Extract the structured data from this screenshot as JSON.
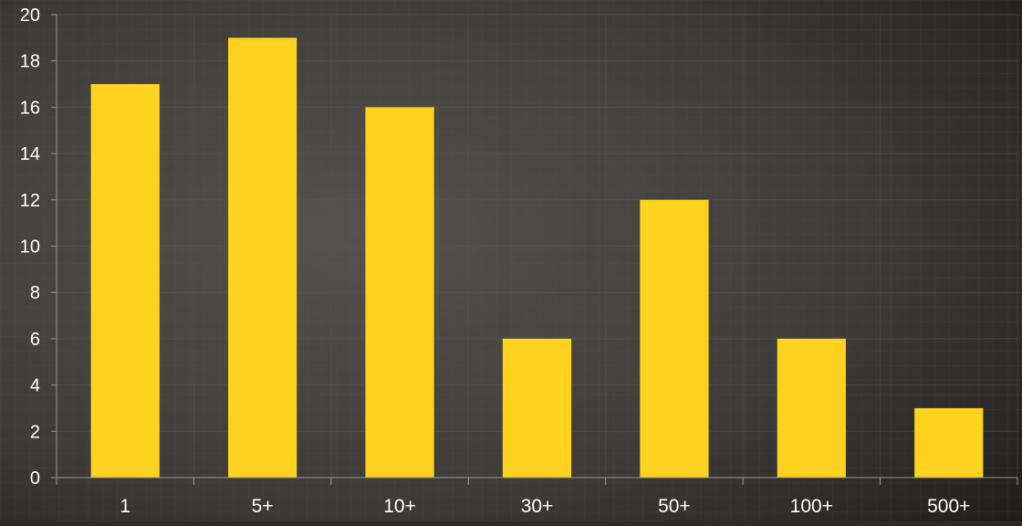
{
  "chart_data": {
    "type": "bar",
    "categories": [
      "1",
      "5+",
      "10+",
      "30+",
      "50+",
      "100+",
      "500+"
    ],
    "values": [
      17,
      19,
      16,
      6,
      12,
      6,
      3
    ],
    "title": "",
    "xlabel": "",
    "ylabel": "",
    "ylim": [
      0,
      20
    ],
    "yticks": [
      0,
      2,
      4,
      6,
      8,
      10,
      12,
      14,
      16,
      18,
      20
    ],
    "grid": true,
    "legend": "none"
  },
  "colors": {
    "bar": "#ffd21f",
    "background": "#2c2b28",
    "grid": "#5a5851",
    "axis": "#9a978e",
    "label": "#ffffff"
  }
}
